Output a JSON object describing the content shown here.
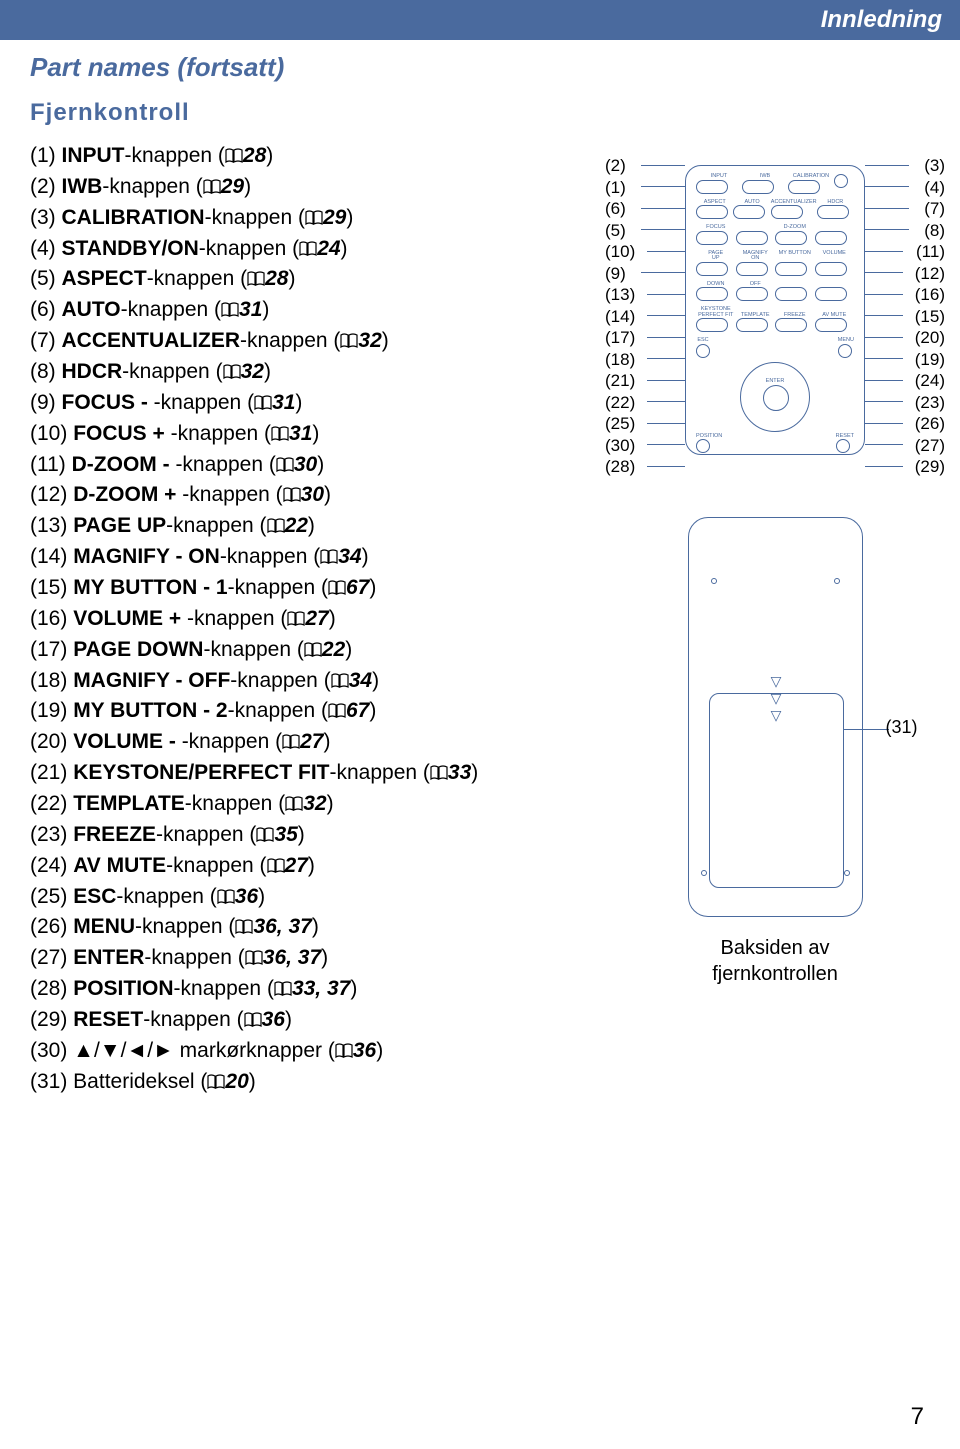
{
  "header": "Innledning",
  "section_title": "Part names (fortsatt)",
  "subsection_title": "Fjernkontroll",
  "page_number": "7",
  "colors": {
    "accent": "#4a6a9e",
    "text": "#000000",
    "bg": "#ffffff"
  },
  "list": [
    {
      "num": "(1)",
      "bold": "INPUT",
      "rest": "-knappen",
      "ref": "28"
    },
    {
      "num": "(2)",
      "bold": "IWB",
      "rest": "-knappen",
      "ref": "29"
    },
    {
      "num": "(3)",
      "bold": "CALIBRATION",
      "rest": "-knappen",
      "ref": "29"
    },
    {
      "num": "(4)",
      "bold": "STANDBY/ON",
      "rest": "-knappen",
      "ref": "24"
    },
    {
      "num": "(5)",
      "bold": "ASPECT",
      "rest": "-knappen",
      "ref": "28"
    },
    {
      "num": "(6)",
      "bold": "AUTO",
      "rest": "-knappen",
      "ref": "31"
    },
    {
      "num": "(7)",
      "bold": "ACCENTUALIZER",
      "rest": "-knappen",
      "ref": "32"
    },
    {
      "num": "(8)",
      "bold": "HDCR",
      "rest": "-knappen",
      "ref": "32"
    },
    {
      "num": "(9)",
      "bold": "FOCUS -",
      "rest": " -knappen",
      "ref": "31"
    },
    {
      "num": "(10)",
      "bold": "FOCUS +",
      "rest": " -knappen",
      "ref": "31"
    },
    {
      "num": "(11)",
      "bold": "D-ZOOM -",
      "rest": " -knappen",
      "ref": "30"
    },
    {
      "num": "(12)",
      "bold": "D-ZOOM +",
      "rest": " -knappen",
      "ref": "30"
    },
    {
      "num": "(13)",
      "bold": "PAGE UP",
      "rest": "-knappen",
      "ref": "22"
    },
    {
      "num": "(14)",
      "bold": "MAGNIFY - ON",
      "rest": "-knappen",
      "ref": "34"
    },
    {
      "num": "(15)",
      "bold": "MY BUTTON - 1",
      "rest": "-knappen",
      "ref": "67"
    },
    {
      "num": "(16)",
      "bold": "VOLUME +",
      "rest": " -knappen",
      "ref": "27"
    },
    {
      "num": "(17)",
      "bold": "PAGE DOWN",
      "rest": "-knappen",
      "ref": "22"
    },
    {
      "num": "(18)",
      "bold": "MAGNIFY - OFF",
      "rest": "-knappen",
      "ref": "34"
    },
    {
      "num": "(19)",
      "bold": "MY BUTTON - 2",
      "rest": "-knappen",
      "ref": "67"
    },
    {
      "num": "(20)",
      "bold": "VOLUME -",
      "rest": " -knappen",
      "ref": "27"
    },
    {
      "num": "(21)",
      "bold": "KEYSTONE/PERFECT FIT",
      "rest": "-knappen",
      "ref": "33"
    },
    {
      "num": "(22)",
      "bold": "TEMPLATE",
      "rest": "-knappen",
      "ref": "32"
    },
    {
      "num": "(23)",
      "bold": "FREEZE",
      "rest": "-knappen",
      "ref": "35"
    },
    {
      "num": "(24)",
      "bold": "AV MUTE",
      "rest": "-knappen",
      "ref": "27"
    },
    {
      "num": "(25)",
      "bold": "ESC",
      "rest": "-knappen",
      "ref": "36"
    },
    {
      "num": "(26)",
      "bold": "MENU",
      "rest": "-knappen",
      "ref": "36, 37"
    },
    {
      "num": "(27)",
      "bold": "ENTER",
      "rest": "-knappen",
      "ref": "36, 37"
    },
    {
      "num": "(28)",
      "bold": "POSITION",
      "rest": "-knappen",
      "ref": "33, 37"
    },
    {
      "num": "(29)",
      "bold": "RESET",
      "rest": "-knappen",
      "ref": "36"
    },
    {
      "num": "(30)",
      "plain_pre": "▲/▼/◄/► markørknapper",
      "ref": "36"
    },
    {
      "num": "(31)",
      "plain_pre": "Batterideksel",
      "ref": "20"
    }
  ],
  "labels_left": [
    "(2)",
    "(1)",
    "(6)",
    "(5)",
    "(10)",
    "(9)",
    "(13)",
    "(14)",
    "(17)",
    "(18)",
    "(21)",
    "(22)",
    "(25)",
    "(30)",
    "(28)"
  ],
  "labels_right": [
    "(3)",
    "(4)",
    "(7)",
    "(8)",
    "(11)",
    "(12)",
    "(16)",
    "(15)",
    "(20)",
    "(19)",
    "(24)",
    "(23)",
    "(26)",
    "(27)",
    "(29)"
  ],
  "remote_button_labels": {
    "row1": [
      "INPUT",
      "IWB",
      "CALIBRATION",
      ""
    ],
    "row2": [
      "ASPECT",
      "AUTO",
      "ACCENTUALIZER",
      "HDCR"
    ],
    "row3": [
      "FOCUS",
      "",
      "D-ZOOM",
      ""
    ],
    "row4": [
      "PAGE",
      "MAGNIFY",
      "MY BUTTON",
      "VOLUME"
    ],
    "row4b": [
      "UP",
      "ON",
      "",
      ""
    ],
    "row5": [
      "DOWN",
      "OFF",
      "",
      ""
    ],
    "row6": [
      "KEYSTONE",
      "",
      "",
      ""
    ],
    "row6b": [
      "PERFECT FIT",
      "TEMPLATE",
      "FREEZE",
      "AV MUTE"
    ],
    "row7": [
      "ESC",
      "",
      "",
      "MENU"
    ],
    "enter": "ENTER",
    "bottom": [
      "POSITION",
      "",
      "",
      "RESET"
    ]
  },
  "back_label_31": "(31)",
  "back_caption_l1": "Baksiden av",
  "back_caption_l2": "fjernkontrollen"
}
